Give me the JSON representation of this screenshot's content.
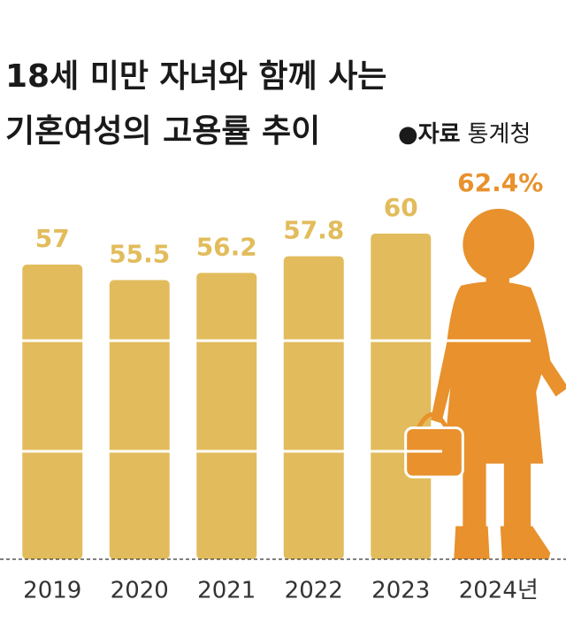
{
  "chart_data": {
    "type": "bar",
    "title": [
      "18세 미만 자녀와 함께 사는",
      "기혼여성의 고용률 추이"
    ],
    "source": {
      "label": "자료",
      "name": "통계청"
    },
    "categories": [
      "2019",
      "2020",
      "2021",
      "2022",
      "2023",
      "2024년"
    ],
    "values": [
      57,
      55.5,
      56.2,
      57.8,
      60,
      62.4
    ],
    "value_labels": [
      "57",
      "55.5",
      "56.2",
      "57.8",
      "60",
      "62.4%"
    ],
    "colors": [
      "#e2bc5c",
      "#e2bc5c",
      "#e2bc5c",
      "#e2bc5c",
      "#e2bc5c",
      "#e8912d"
    ],
    "ylim": [
      28.5,
      66.5
    ]
  }
}
